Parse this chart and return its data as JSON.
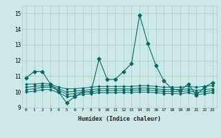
{
  "xlabel": "Humidex (Indice chaleur)",
  "background_color": "#cce8e8",
  "grid_color": "#aacccc",
  "line_color": "#006666",
  "xlim": [
    -0.5,
    23.5
  ],
  "ylim": [
    9.0,
    15.5
  ],
  "yticks": [
    9,
    10,
    11,
    12,
    13,
    14,
    15
  ],
  "xticks": [
    0,
    1,
    2,
    3,
    4,
    5,
    6,
    7,
    8,
    9,
    10,
    11,
    12,
    13,
    14,
    15,
    16,
    17,
    18,
    19,
    20,
    21,
    22,
    23
  ],
  "series_main": [
    10.9,
    11.3,
    11.3,
    10.5,
    10.0,
    9.3,
    9.7,
    10.0,
    10.0,
    12.1,
    10.8,
    10.8,
    11.3,
    11.8,
    14.9,
    13.1,
    11.7,
    10.7,
    10.2,
    10.1,
    10.5,
    9.8,
    10.3,
    10.6
  ],
  "series_flat1": [
    10.5,
    10.5,
    10.55,
    10.5,
    10.3,
    10.2,
    10.2,
    10.25,
    10.3,
    10.35,
    10.35,
    10.35,
    10.35,
    10.35,
    10.4,
    10.4,
    10.35,
    10.3,
    10.3,
    10.3,
    10.35,
    10.3,
    10.35,
    10.4
  ],
  "series_flat2": [
    10.3,
    10.35,
    10.4,
    10.4,
    10.2,
    10.0,
    10.05,
    10.1,
    10.15,
    10.2,
    10.2,
    10.2,
    10.2,
    10.2,
    10.25,
    10.25,
    10.2,
    10.15,
    10.15,
    10.15,
    10.2,
    10.1,
    10.15,
    10.2
  ],
  "series_flat3": [
    10.15,
    10.2,
    10.3,
    10.3,
    10.1,
    9.85,
    9.9,
    9.98,
    10.02,
    10.08,
    10.08,
    10.08,
    10.1,
    10.1,
    10.12,
    10.12,
    10.08,
    10.03,
    10.03,
    10.02,
    10.08,
    9.97,
    10.02,
    10.08
  ],
  "series_flat4": [
    10.0,
    10.05,
    10.15,
    10.15,
    9.95,
    9.7,
    9.75,
    9.85,
    9.88,
    9.95,
    9.95,
    9.95,
    9.97,
    9.97,
    9.99,
    9.99,
    9.95,
    9.9,
    9.9,
    9.88,
    9.95,
    9.83,
    9.88,
    9.95
  ]
}
